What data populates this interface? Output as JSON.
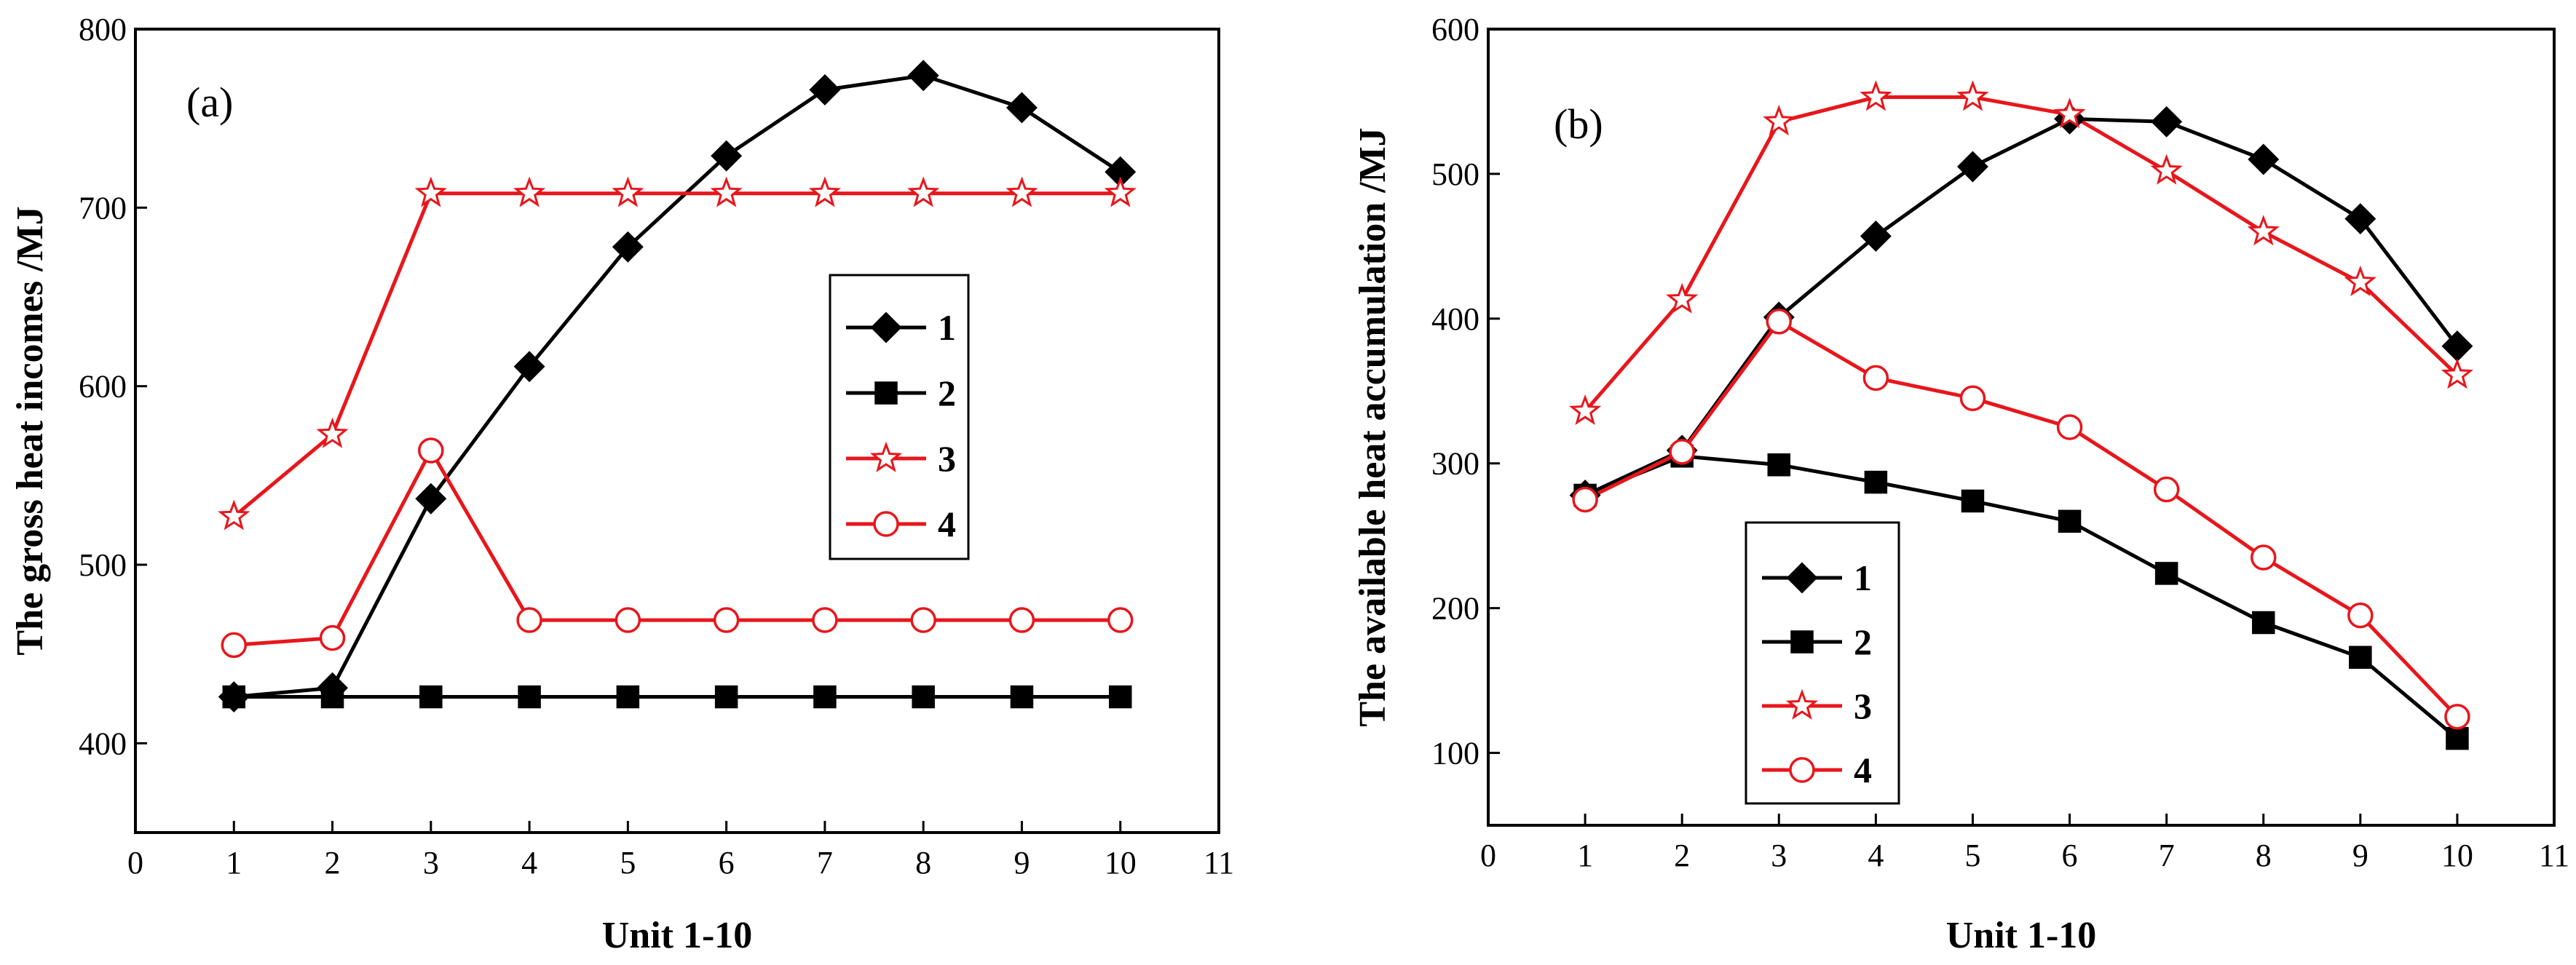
{
  "chart_data": [
    {
      "type": "line",
      "panel_label": "(a)",
      "xlabel": "Unit 1-10",
      "ylabel": "The gross heat incomes /MJ",
      "xlim": [
        0,
        11
      ],
      "ylim": [
        350,
        800
      ],
      "x_ticks": [
        0,
        1,
        2,
        3,
        4,
        5,
        6,
        7,
        8,
        9,
        10,
        11
      ],
      "y_ticks": [
        400,
        500,
        600,
        700,
        800
      ],
      "grid": false,
      "legend_position": "right-center",
      "x": [
        1,
        2,
        3,
        4,
        5,
        6,
        7,
        8,
        9,
        10
      ],
      "series": [
        {
          "name": "1",
          "marker": "diamond",
          "color": "#000000",
          "filled": true,
          "values": [
            426,
            431,
            537,
            611,
            678,
            729,
            766,
            774,
            756,
            720
          ]
        },
        {
          "name": "2",
          "marker": "square",
          "color": "#000000",
          "filled": true,
          "values": [
            426,
            426,
            426,
            426,
            426,
            426,
            426,
            426,
            426,
            426
          ]
        },
        {
          "name": "3",
          "marker": "star",
          "color": "#e8161b",
          "filled": false,
          "values": [
            527,
            573,
            708,
            708,
            708,
            708,
            708,
            708,
            708,
            708
          ]
        },
        {
          "name": "4",
          "marker": "circle",
          "color": "#e8161b",
          "filled": false,
          "values": [
            455,
            459,
            564,
            469,
            469,
            469,
            469,
            469,
            469,
            469
          ]
        }
      ]
    },
    {
      "type": "line",
      "panel_label": "(b)",
      "xlabel": "Unit 1-10",
      "ylabel": "The available heat accumulation /MJ",
      "xlim": [
        0,
        11
      ],
      "ylim": [
        50,
        600
      ],
      "x_ticks": [
        0,
        1,
        2,
        3,
        4,
        5,
        6,
        7,
        8,
        9,
        10,
        11
      ],
      "y_ticks": [
        100,
        200,
        300,
        400,
        500,
        600
      ],
      "grid": false,
      "legend_position": "bottom-left",
      "x": [
        1,
        2,
        3,
        4,
        5,
        6,
        7,
        8,
        9,
        10
      ],
      "series": [
        {
          "name": "1",
          "marker": "diamond",
          "color": "#000000",
          "filled": true,
          "values": [
            278,
            309,
            401,
            457,
            505,
            538,
            536,
            510,
            469,
            381
          ]
        },
        {
          "name": "2",
          "marker": "square",
          "color": "#000000",
          "filled": true,
          "values": [
            278,
            305,
            299,
            287,
            274,
            260,
            224,
            190,
            166,
            110
          ]
        },
        {
          "name": "3",
          "marker": "star",
          "color": "#e8161b",
          "filled": false,
          "values": [
            336,
            413,
            536,
            553,
            553,
            541,
            502,
            460,
            425,
            361
          ]
        },
        {
          "name": "4",
          "marker": "circle",
          "color": "#e8161b",
          "filled": false,
          "values": [
            275,
            308,
            398,
            359,
            345,
            325,
            282,
            235,
            195,
            125
          ]
        }
      ]
    }
  ]
}
